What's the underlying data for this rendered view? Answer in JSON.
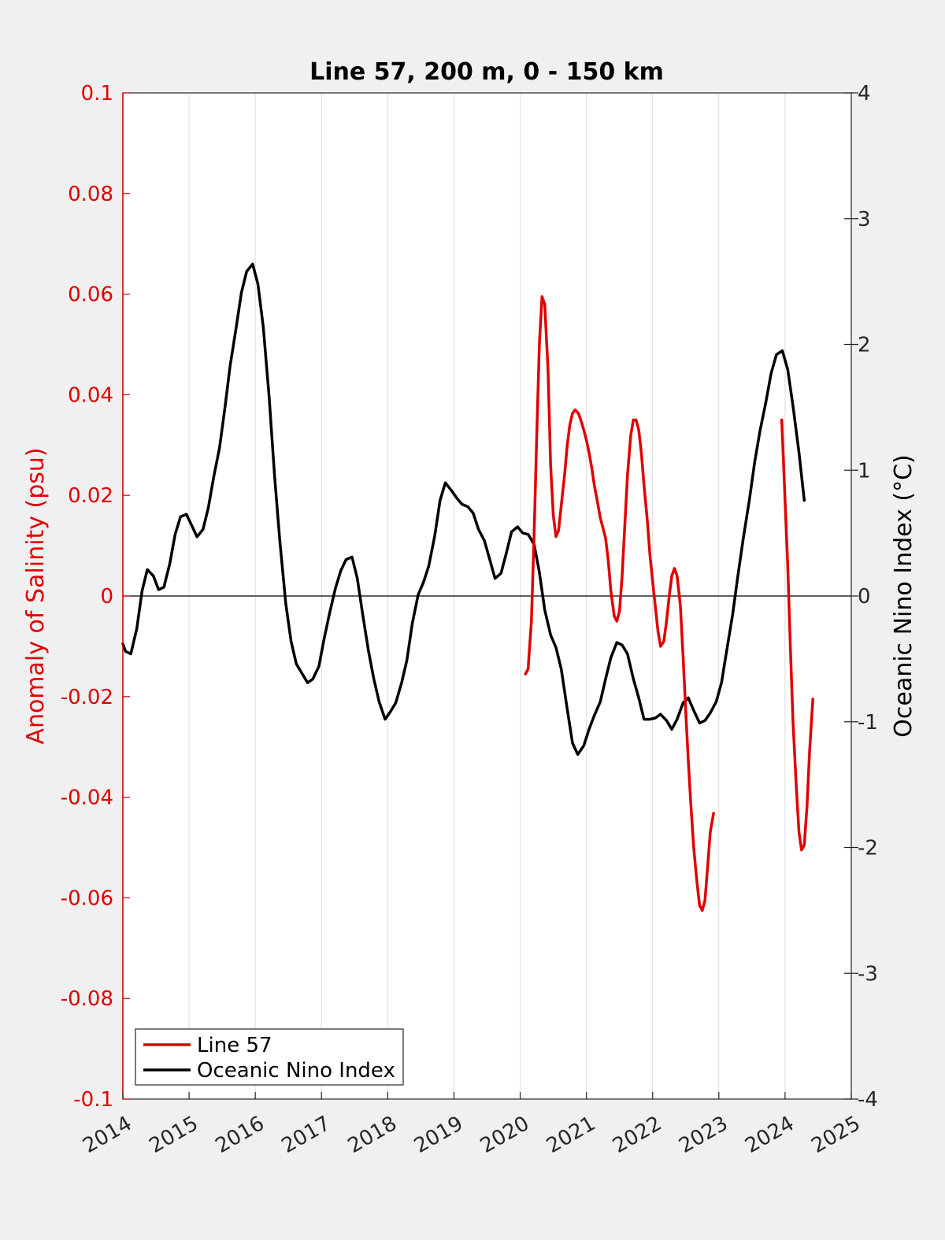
{
  "colors": {
    "background": "#f0f0f0",
    "plot_background": "#ffffff",
    "line57": "#e00000",
    "oni": "#000000",
    "left_axis": "#e00000",
    "grid": "#dcdcdc"
  },
  "chart_data": {
    "type": "line",
    "title": "Line 57, 200 m, 0 - 150 km",
    "ylabel_left": "Anomaly of Salinity (psu)",
    "ylabel_right": "Oceanic Nino Index (°C)",
    "xlim": [
      2014,
      2025
    ],
    "ylim_left": [
      -0.1,
      0.1
    ],
    "ylim_right": [
      -4,
      4
    ],
    "grid": "vertical",
    "legend_position": "bottom-left",
    "x_ticks": [
      2014,
      2015,
      2016,
      2017,
      2018,
      2019,
      2020,
      2021,
      2022,
      2023,
      2024,
      2025
    ],
    "x_tick_labels": [
      "2014",
      "2015",
      "2016",
      "2017",
      "2018",
      "2019",
      "2020",
      "2021",
      "2022",
      "2023",
      "2024",
      "2025"
    ],
    "y_left_ticks": [
      0.1,
      0.08,
      0.06,
      0.04,
      0.02,
      0,
      -0.02,
      -0.04,
      -0.06,
      -0.08,
      -0.1
    ],
    "y_left_tick_labels": [
      "0.1",
      "0.08",
      "0.06",
      "0.04",
      "0.02",
      "0",
      "-0.02",
      "-0.04",
      "-0.06",
      "-0.08",
      "-0.1"
    ],
    "y_right_ticks": [
      4,
      3,
      2,
      1,
      0,
      -1,
      -2,
      -3,
      -4
    ],
    "y_right_tick_labels": [
      "4",
      "3",
      "2",
      "1",
      "0",
      "-1",
      "-2",
      "-3",
      "-4"
    ],
    "series": [
      {
        "name": "Line 57",
        "axis": "left",
        "segments": [
          [
            [
              2020.08,
              -0.0155
            ],
            [
              2020.12,
              -0.0145
            ],
            [
              2020.17,
              -0.005
            ],
            [
              2020.21,
              0.012
            ],
            [
              2020.25,
              0.032
            ],
            [
              2020.29,
              0.05
            ],
            [
              2020.33,
              0.0595
            ],
            [
              2020.37,
              0.058
            ],
            [
              2020.42,
              0.045
            ],
            [
              2020.46,
              0.026
            ],
            [
              2020.5,
              0.016
            ],
            [
              2020.54,
              0.0118
            ],
            [
              2020.58,
              0.013
            ],
            [
              2020.62,
              0.018
            ],
            [
              2020.67,
              0.024
            ],
            [
              2020.71,
              0.03
            ],
            [
              2020.75,
              0.034
            ],
            [
              2020.79,
              0.0363
            ],
            [
              2020.83,
              0.037
            ],
            [
              2020.88,
              0.0363
            ],
            [
              2020.92,
              0.0348
            ],
            [
              2020.96,
              0.033
            ],
            [
              2021.0,
              0.031
            ],
            [
              2021.04,
              0.0285
            ],
            [
              2021.08,
              0.0255
            ],
            [
              2021.12,
              0.022
            ],
            [
              2021.17,
              0.0185
            ],
            [
              2021.21,
              0.0155
            ],
            [
              2021.25,
              0.0135
            ],
            [
              2021.29,
              0.0115
            ],
            [
              2021.33,
              0.007
            ],
            [
              2021.37,
              0.001
            ],
            [
              2021.42,
              -0.004
            ],
            [
              2021.46,
              -0.005
            ],
            [
              2021.5,
              -0.003
            ],
            [
              2021.54,
              0.004
            ],
            [
              2021.58,
              0.014
            ],
            [
              2021.62,
              0.024
            ],
            [
              2021.67,
              0.032
            ],
            [
              2021.71,
              0.035
            ],
            [
              2021.75,
              0.035
            ],
            [
              2021.79,
              0.033
            ],
            [
              2021.83,
              0.0285
            ],
            [
              2021.87,
              0.022
            ],
            [
              2021.92,
              0.015
            ],
            [
              2021.96,
              0.008
            ],
            [
              2022.0,
              0.003
            ],
            [
              2022.04,
              -0.002
            ],
            [
              2022.08,
              -0.007
            ],
            [
              2022.12,
              -0.01
            ],
            [
              2022.17,
              -0.009
            ],
            [
              2022.21,
              -0.005
            ],
            [
              2022.25,
              0.0
            ],
            [
              2022.29,
              0.004
            ],
            [
              2022.33,
              0.0055
            ],
            [
              2022.37,
              0.004
            ],
            [
              2022.42,
              -0.002
            ],
            [
              2022.46,
              -0.012
            ],
            [
              2022.5,
              -0.023
            ],
            [
              2022.54,
              -0.033
            ],
            [
              2022.58,
              -0.042
            ],
            [
              2022.62,
              -0.05
            ],
            [
              2022.67,
              -0.057
            ],
            [
              2022.71,
              -0.0615
            ],
            [
              2022.75,
              -0.0625
            ],
            [
              2022.79,
              -0.0605
            ],
            [
              2022.83,
              -0.054
            ],
            [
              2022.87,
              -0.047
            ],
            [
              2022.92,
              -0.0432
            ]
          ],
          [
            [
              2023.95,
              0.035
            ],
            [
              2023.99,
              0.022
            ],
            [
              2024.04,
              0.006
            ],
            [
              2024.08,
              -0.01
            ],
            [
              2024.12,
              -0.025
            ],
            [
              2024.17,
              -0.038
            ],
            [
              2024.21,
              -0.047
            ],
            [
              2024.25,
              -0.0505
            ],
            [
              2024.29,
              -0.0495
            ],
            [
              2024.33,
              -0.042
            ],
            [
              2024.37,
              -0.031
            ],
            [
              2024.42,
              -0.0205
            ]
          ]
        ]
      },
      {
        "name": "Oceanic Nino Index",
        "axis": "right",
        "segments": [
          [
            [
              2014.0,
              -0.38
            ],
            [
              2014.04,
              -0.44
            ],
            [
              2014.12,
              -0.46
            ],
            [
              2014.21,
              -0.26
            ],
            [
              2014.29,
              0.04
            ],
            [
              2014.37,
              0.21
            ],
            [
              2014.46,
              0.16
            ],
            [
              2014.54,
              0.05
            ],
            [
              2014.62,
              0.07
            ],
            [
              2014.71,
              0.26
            ],
            [
              2014.79,
              0.49
            ],
            [
              2014.87,
              0.63
            ],
            [
              2014.96,
              0.65
            ],
            [
              2015.04,
              0.56
            ],
            [
              2015.12,
              0.47
            ],
            [
              2015.21,
              0.53
            ],
            [
              2015.29,
              0.7
            ],
            [
              2015.37,
              0.94
            ],
            [
              2015.46,
              1.18
            ],
            [
              2015.54,
              1.49
            ],
            [
              2015.62,
              1.83
            ],
            [
              2015.71,
              2.13
            ],
            [
              2015.79,
              2.41
            ],
            [
              2015.87,
              2.58
            ],
            [
              2015.96,
              2.64
            ],
            [
              2016.04,
              2.48
            ],
            [
              2016.12,
              2.14
            ],
            [
              2016.21,
              1.58
            ],
            [
              2016.29,
              0.96
            ],
            [
              2016.37,
              0.44
            ],
            [
              2016.46,
              -0.06
            ],
            [
              2016.54,
              -0.36
            ],
            [
              2016.62,
              -0.54
            ],
            [
              2016.71,
              -0.62
            ],
            [
              2016.79,
              -0.69
            ],
            [
              2016.87,
              -0.66
            ],
            [
              2016.96,
              -0.56
            ],
            [
              2017.04,
              -0.34
            ],
            [
              2017.12,
              -0.14
            ],
            [
              2017.21,
              0.06
            ],
            [
              2017.29,
              0.2
            ],
            [
              2017.37,
              0.29
            ],
            [
              2017.46,
              0.31
            ],
            [
              2017.54,
              0.14
            ],
            [
              2017.62,
              -0.14
            ],
            [
              2017.71,
              -0.44
            ],
            [
              2017.79,
              -0.66
            ],
            [
              2017.87,
              -0.84
            ],
            [
              2017.96,
              -0.98
            ],
            [
              2018.04,
              -0.92
            ],
            [
              2018.12,
              -0.85
            ],
            [
              2018.21,
              -0.69
            ],
            [
              2018.29,
              -0.51
            ],
            [
              2018.37,
              -0.22
            ],
            [
              2018.46,
              0.01
            ],
            [
              2018.54,
              0.11
            ],
            [
              2018.62,
              0.24
            ],
            [
              2018.71,
              0.48
            ],
            [
              2018.79,
              0.76
            ],
            [
              2018.87,
              0.9
            ],
            [
              2018.96,
              0.84
            ],
            [
              2019.04,
              0.78
            ],
            [
              2019.12,
              0.73
            ],
            [
              2019.21,
              0.71
            ],
            [
              2019.29,
              0.66
            ],
            [
              2019.37,
              0.53
            ],
            [
              2019.46,
              0.44
            ],
            [
              2019.54,
              0.29
            ],
            [
              2019.62,
              0.14
            ],
            [
              2019.71,
              0.18
            ],
            [
              2019.79,
              0.34
            ],
            [
              2019.87,
              0.51
            ],
            [
              2019.96,
              0.55
            ],
            [
              2020.04,
              0.5
            ],
            [
              2020.12,
              0.49
            ],
            [
              2020.21,
              0.41
            ],
            [
              2020.29,
              0.19
            ],
            [
              2020.37,
              -0.11
            ],
            [
              2020.46,
              -0.31
            ],
            [
              2020.54,
              -0.41
            ],
            [
              2020.62,
              -0.58
            ],
            [
              2020.71,
              -0.9
            ],
            [
              2020.79,
              -1.17
            ],
            [
              2020.87,
              -1.26
            ],
            [
              2020.96,
              -1.19
            ],
            [
              2021.04,
              -1.06
            ],
            [
              2021.12,
              -0.95
            ],
            [
              2021.21,
              -0.84
            ],
            [
              2021.29,
              -0.66
            ],
            [
              2021.37,
              -0.49
            ],
            [
              2021.46,
              -0.37
            ],
            [
              2021.54,
              -0.39
            ],
            [
              2021.62,
              -0.46
            ],
            [
              2021.71,
              -0.66
            ],
            [
              2021.79,
              -0.81
            ],
            [
              2021.87,
              -0.98
            ],
            [
              2021.96,
              -0.98
            ],
            [
              2022.04,
              -0.97
            ],
            [
              2022.12,
              -0.94
            ],
            [
              2022.21,
              -0.99
            ],
            [
              2022.29,
              -1.06
            ],
            [
              2022.37,
              -0.98
            ],
            [
              2022.46,
              -0.85
            ],
            [
              2022.54,
              -0.81
            ],
            [
              2022.62,
              -0.91
            ],
            [
              2022.71,
              -1.01
            ],
            [
              2022.79,
              -0.99
            ],
            [
              2022.87,
              -0.93
            ],
            [
              2022.96,
              -0.84
            ],
            [
              2023.04,
              -0.69
            ],
            [
              2023.12,
              -0.43
            ],
            [
              2023.21,
              -0.14
            ],
            [
              2023.29,
              0.17
            ],
            [
              2023.37,
              0.46
            ],
            [
              2023.46,
              0.76
            ],
            [
              2023.54,
              1.06
            ],
            [
              2023.62,
              1.31
            ],
            [
              2023.71,
              1.54
            ],
            [
              2023.79,
              1.77
            ],
            [
              2023.87,
              1.92
            ],
            [
              2023.96,
              1.95
            ],
            [
              2024.04,
              1.8
            ],
            [
              2024.12,
              1.51
            ],
            [
              2024.21,
              1.14
            ],
            [
              2024.29,
              0.76
            ]
          ]
        ]
      }
    ]
  }
}
